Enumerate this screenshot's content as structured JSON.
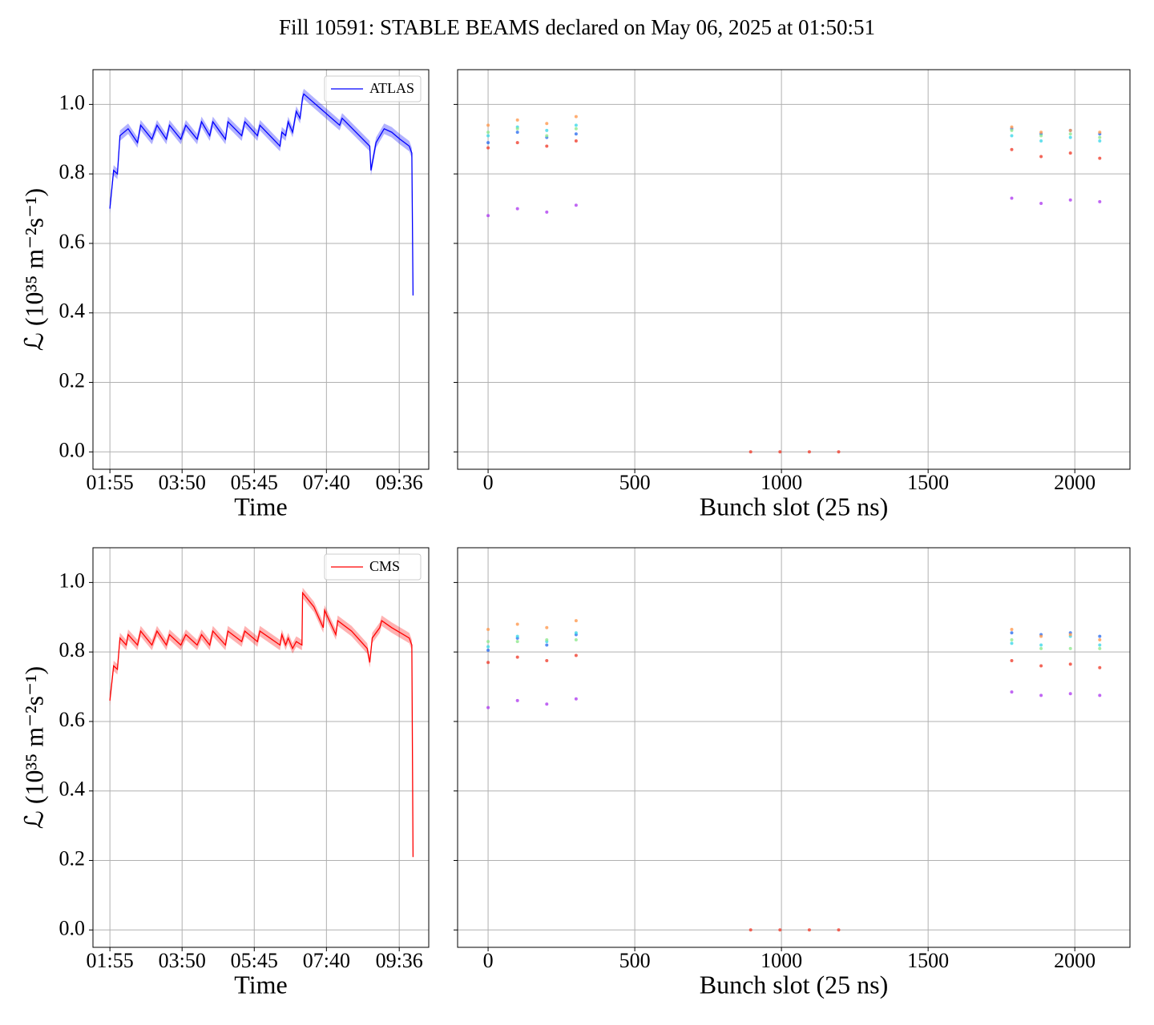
{
  "title": "Fill 10591: STABLE BEAMS declared on May 06, 2025 at 01:50:51",
  "chart_data": [
    {
      "type": "line",
      "xlabel": "Time",
      "ylabel": "ℒ (10³⁵ m⁻²s⁻¹)",
      "x": [
        "01:55",
        "02:01",
        "02:07",
        "02:11",
        "02:24",
        "02:39",
        "02:44",
        "03:02",
        "03:10",
        "03:25",
        "03:30",
        "03:48",
        "03:56",
        "04:14",
        "04:21",
        "04:34",
        "04:39",
        "04:59",
        "05:03",
        "05:25",
        "05:30",
        "05:50",
        "05:54",
        "06:26",
        "06:29",
        "06:35",
        "06:39",
        "06:46",
        "06:52",
        "06:58",
        "07:02",
        "07:04",
        "08:01",
        "08:05",
        "08:49",
        "08:51",
        "08:59",
        "09:12",
        "09:24",
        "09:37",
        "09:52",
        "09:56",
        "09:58"
      ],
      "series": [
        {
          "name": "ATLAS",
          "color": "#0000ff",
          "error": 0.015,
          "values": [
            0.7,
            0.81,
            0.8,
            0.91,
            0.93,
            0.89,
            0.94,
            0.9,
            0.94,
            0.9,
            0.94,
            0.9,
            0.94,
            0.9,
            0.95,
            0.91,
            0.95,
            0.9,
            0.95,
            0.91,
            0.95,
            0.91,
            0.94,
            0.88,
            0.92,
            0.91,
            0.95,
            0.92,
            0.98,
            0.96,
            1.02,
            1.03,
            0.94,
            0.96,
            0.88,
            0.81,
            0.89,
            0.93,
            0.92,
            0.9,
            0.88,
            0.86,
            0.45
          ]
        }
      ],
      "xlim": [
        "01:28",
        "10:23"
      ],
      "xticks": [
        "01:55",
        "03:50",
        "05:45",
        "07:40",
        "09:36"
      ],
      "ylim": [
        -0.05,
        1.1
      ],
      "yticks": [
        {
          "value": 0,
          "label": "0.0"
        },
        0.2,
        0.4,
        0.6,
        0.8,
        {
          "value": 1,
          "label": "1.0"
        }
      ],
      "grid": true,
      "legend": "upper right"
    },
    {
      "type": "scatter",
      "xlabel": "Bunch slot (25 ns)",
      "x": [
        0,
        100,
        200,
        300,
        895,
        995,
        1095,
        1195,
        1785,
        1885,
        1985,
        2085
      ],
      "series": [
        {
          "color": "#b040f0",
          "values": [
            0.68,
            0.7,
            0.69,
            0.71,
            null,
            null,
            null,
            null,
            0.73,
            0.715,
            0.725,
            0.72
          ]
        },
        {
          "color": "#f04030",
          "values": [
            0.875,
            0.89,
            0.88,
            0.895,
            0,
            0,
            0,
            0,
            0.87,
            0.85,
            0.86,
            0.845
          ]
        },
        {
          "color": "#3070f0",
          "values": [
            0.89,
            0.92,
            0.905,
            0.915,
            null,
            null,
            null,
            null,
            0.93,
            0.915,
            0.925,
            0.915
          ]
        },
        {
          "color": "#40d8e8",
          "values": [
            0.91,
            0.935,
            0.925,
            0.94,
            null,
            null,
            null,
            null,
            0.91,
            0.895,
            0.905,
            0.895
          ]
        },
        {
          "color": "#90e890",
          "values": [
            0.92,
            0.93,
            0.91,
            0.93,
            null,
            null,
            null,
            null,
            0.925,
            0.91,
            0.915,
            0.905
          ]
        },
        {
          "color": "#ff9a50",
          "values": [
            0.94,
            0.955,
            0.945,
            0.965,
            null,
            null,
            null,
            null,
            0.935,
            0.92,
            0.925,
            0.92
          ]
        }
      ],
      "xlim": [
        -104,
        2188
      ],
      "xticks": [
        0,
        500,
        1000,
        1500,
        2000
      ],
      "ylim": [
        -0.05,
        1.1
      ],
      "yticks": [
        0,
        0.2,
        0.4,
        0.6,
        0.8,
        1
      ],
      "grid": true
    },
    {
      "type": "line",
      "xlabel": "Time",
      "ylabel": "ℒ (10³⁵ m⁻²s⁻¹)",
      "x": [
        "01:55",
        "02:01",
        "02:07",
        "02:11",
        "02:21",
        "02:24",
        "02:39",
        "02:44",
        "03:02",
        "03:10",
        "03:25",
        "03:30",
        "03:48",
        "03:56",
        "04:14",
        "04:21",
        "04:34",
        "04:39",
        "04:59",
        "05:03",
        "05:25",
        "05:30",
        "05:50",
        "05:54",
        "06:26",
        "06:29",
        "06:35",
        "06:39",
        "06:46",
        "06:52",
        "07:01",
        "07:02",
        "07:20",
        "07:35",
        "07:37",
        "07:55",
        "07:58",
        "08:20",
        "08:45",
        "08:49",
        "08:53",
        "09:05",
        "09:08",
        "09:24",
        "09:52",
        "09:56",
        "09:58"
      ],
      "series": [
        {
          "name": "CMS",
          "color": "#ff0000",
          "error": 0.015,
          "values": [
            0.66,
            0.76,
            0.75,
            0.84,
            0.82,
            0.85,
            0.82,
            0.86,
            0.82,
            0.86,
            0.82,
            0.85,
            0.82,
            0.85,
            0.82,
            0.85,
            0.82,
            0.86,
            0.82,
            0.86,
            0.83,
            0.86,
            0.83,
            0.86,
            0.82,
            0.85,
            0.82,
            0.84,
            0.81,
            0.83,
            0.82,
            0.97,
            0.93,
            0.87,
            0.92,
            0.85,
            0.89,
            0.86,
            0.81,
            0.77,
            0.84,
            0.87,
            0.89,
            0.87,
            0.84,
            0.82,
            0.21
          ]
        }
      ],
      "xlim": [
        "01:28",
        "10:23"
      ],
      "xticks": [
        "01:55",
        "03:50",
        "05:45",
        "07:40",
        "09:36"
      ],
      "ylim": [
        -0.05,
        1.1
      ],
      "yticks": [
        {
          "value": 0,
          "label": "0.0"
        },
        0.2,
        0.4,
        0.6,
        0.8,
        {
          "value": 1,
          "label": "1.0"
        }
      ],
      "grid": true,
      "legend": "upper right"
    },
    {
      "type": "scatter",
      "xlabel": "Bunch slot (25 ns)",
      "x": [
        0,
        100,
        200,
        300,
        895,
        995,
        1095,
        1195,
        1785,
        1885,
        1985,
        2085
      ],
      "series": [
        {
          "color": "#b040f0",
          "values": [
            0.64,
            0.66,
            0.65,
            0.665,
            null,
            null,
            null,
            null,
            0.685,
            0.675,
            0.68,
            0.675
          ]
        },
        {
          "color": "#f04030",
          "values": [
            0.77,
            0.785,
            0.775,
            0.79,
            0,
            0,
            0,
            0,
            0.775,
            0.76,
            0.765,
            0.755
          ]
        },
        {
          "color": "#3070f0",
          "values": [
            0.805,
            0.84,
            0.82,
            0.85,
            null,
            null,
            null,
            null,
            0.855,
            0.85,
            0.855,
            0.845
          ]
        },
        {
          "color": "#40d8e8",
          "values": [
            0.815,
            0.845,
            0.83,
            0.855,
            null,
            null,
            null,
            null,
            0.825,
            0.82,
            0.845,
            0.82
          ]
        },
        {
          "color": "#90e890",
          "values": [
            0.83,
            0.83,
            0.835,
            0.835,
            null,
            null,
            null,
            null,
            0.835,
            0.81,
            0.81,
            0.81
          ]
        },
        {
          "color": "#ff9a50",
          "values": [
            0.865,
            0.88,
            0.87,
            0.89,
            null,
            null,
            null,
            null,
            0.865,
            0.845,
            0.85,
            0.835
          ]
        }
      ],
      "xlim": [
        -104,
        2188
      ],
      "xticks": [
        0,
        500,
        1000,
        1500,
        2000
      ],
      "ylim": [
        -0.05,
        1.1
      ],
      "yticks": [
        0,
        0.2,
        0.4,
        0.6,
        0.8,
        1
      ],
      "grid": true
    }
  ]
}
